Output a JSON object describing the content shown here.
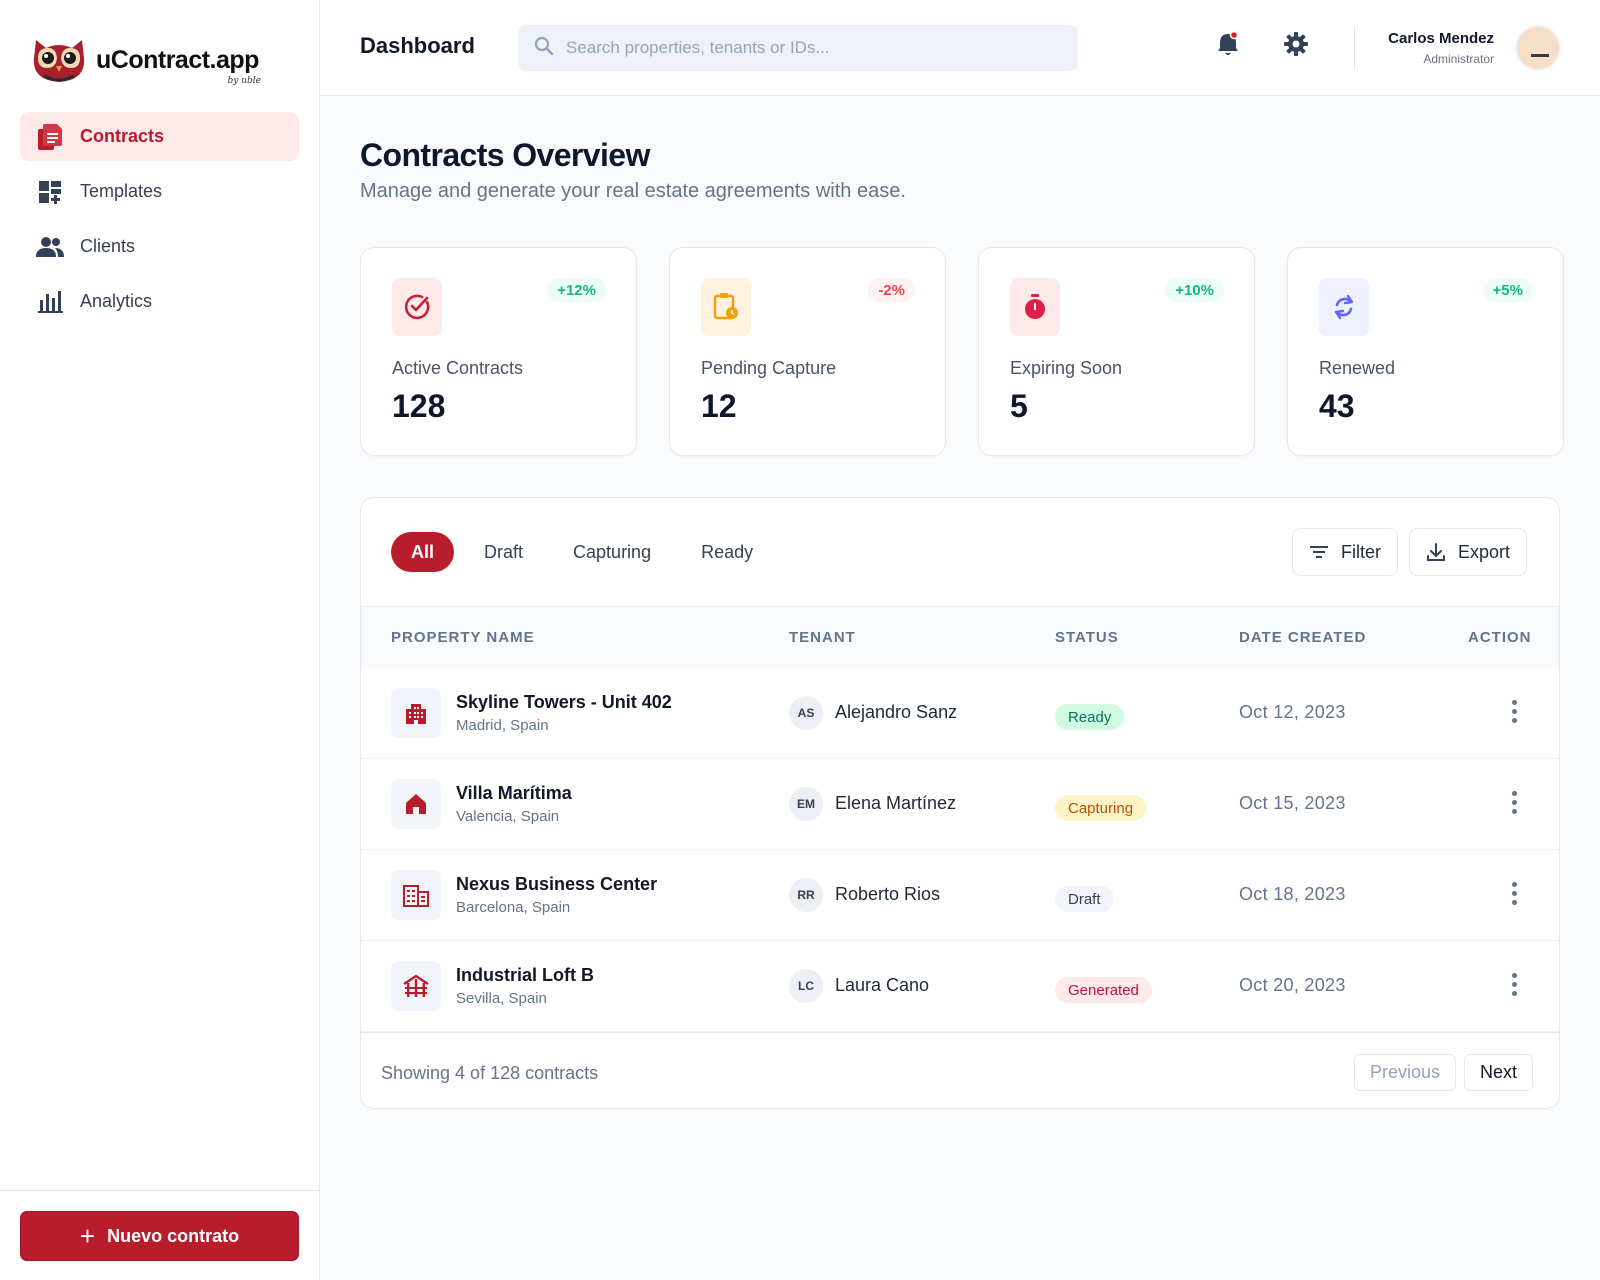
{
  "brand": {
    "name": "uContract.app",
    "sub": "by uble",
    "colors": {
      "primary": "#b91c2c"
    }
  },
  "sidebar": {
    "items": [
      {
        "label": "Contracts",
        "icon": "contracts-icon",
        "active": true
      },
      {
        "label": "Templates",
        "icon": "templates-icon",
        "active": false
      },
      {
        "label": "Clients",
        "icon": "clients-icon",
        "active": false
      },
      {
        "label": "Analytics",
        "icon": "analytics-icon",
        "active": false
      }
    ],
    "new_contract_label": "Nuevo contrato"
  },
  "header": {
    "title": "Dashboard",
    "search_placeholder": "Search properties, tenants or IDs...",
    "user": {
      "name": "Carlos Mendez",
      "role": "Administrator"
    }
  },
  "main": {
    "title": "Contracts Overview",
    "subtitle": "Manage and generate your real estate agreements with ease.",
    "stats": [
      {
        "label": "Active Contracts",
        "value": "128",
        "change": "+12%",
        "icon": "check-circle-icon",
        "trend": "up"
      },
      {
        "label": "Pending Capture",
        "value": "12",
        "change": "-2%",
        "icon": "clipboard-clock-icon",
        "trend": "down"
      },
      {
        "label": "Expiring Soon",
        "value": "5",
        "change": "+10%",
        "icon": "stopwatch-icon",
        "trend": "up"
      },
      {
        "label": "Renewed",
        "value": "43",
        "change": "+5%",
        "icon": "refresh-icon",
        "trend": "up"
      }
    ],
    "tabs": [
      "All",
      "Draft",
      "Capturing",
      "Ready"
    ],
    "filter_label": "Filter",
    "export_label": "Export",
    "columns": [
      "PROPERTY NAME",
      "TENANT",
      "STATUS",
      "DATE CREATED",
      "ACTION"
    ],
    "rows": [
      {
        "property": "Skyline Towers - Unit 402",
        "location": "Madrid, Spain",
        "icon": "apartment-building-icon",
        "tenant_initials": "AS",
        "tenant": "Alejandro Sanz",
        "status": "Ready",
        "date": "Oct 12, 2023"
      },
      {
        "property": "Villa Marítima",
        "location": "Valencia, Spain",
        "icon": "house-icon",
        "tenant_initials": "EM",
        "tenant": "Elena Martínez",
        "status": "Capturing",
        "date": "Oct 15, 2023"
      },
      {
        "property": "Nexus Business Center",
        "location": "Barcelona, Spain",
        "icon": "office-building-icon",
        "tenant_initials": "RR",
        "tenant": "Roberto Rios",
        "status": "Draft",
        "date": "Oct 18, 2023"
      },
      {
        "property": "Industrial Loft B",
        "location": "Sevilla, Spain",
        "icon": "warehouse-icon",
        "tenant_initials": "LC",
        "tenant": "Laura Cano",
        "status": "Generated",
        "date": "Oct 20, 2023"
      }
    ],
    "footer": {
      "showing": "Showing 4 of 128 contracts",
      "previous": "Previous",
      "next": "Next"
    }
  }
}
